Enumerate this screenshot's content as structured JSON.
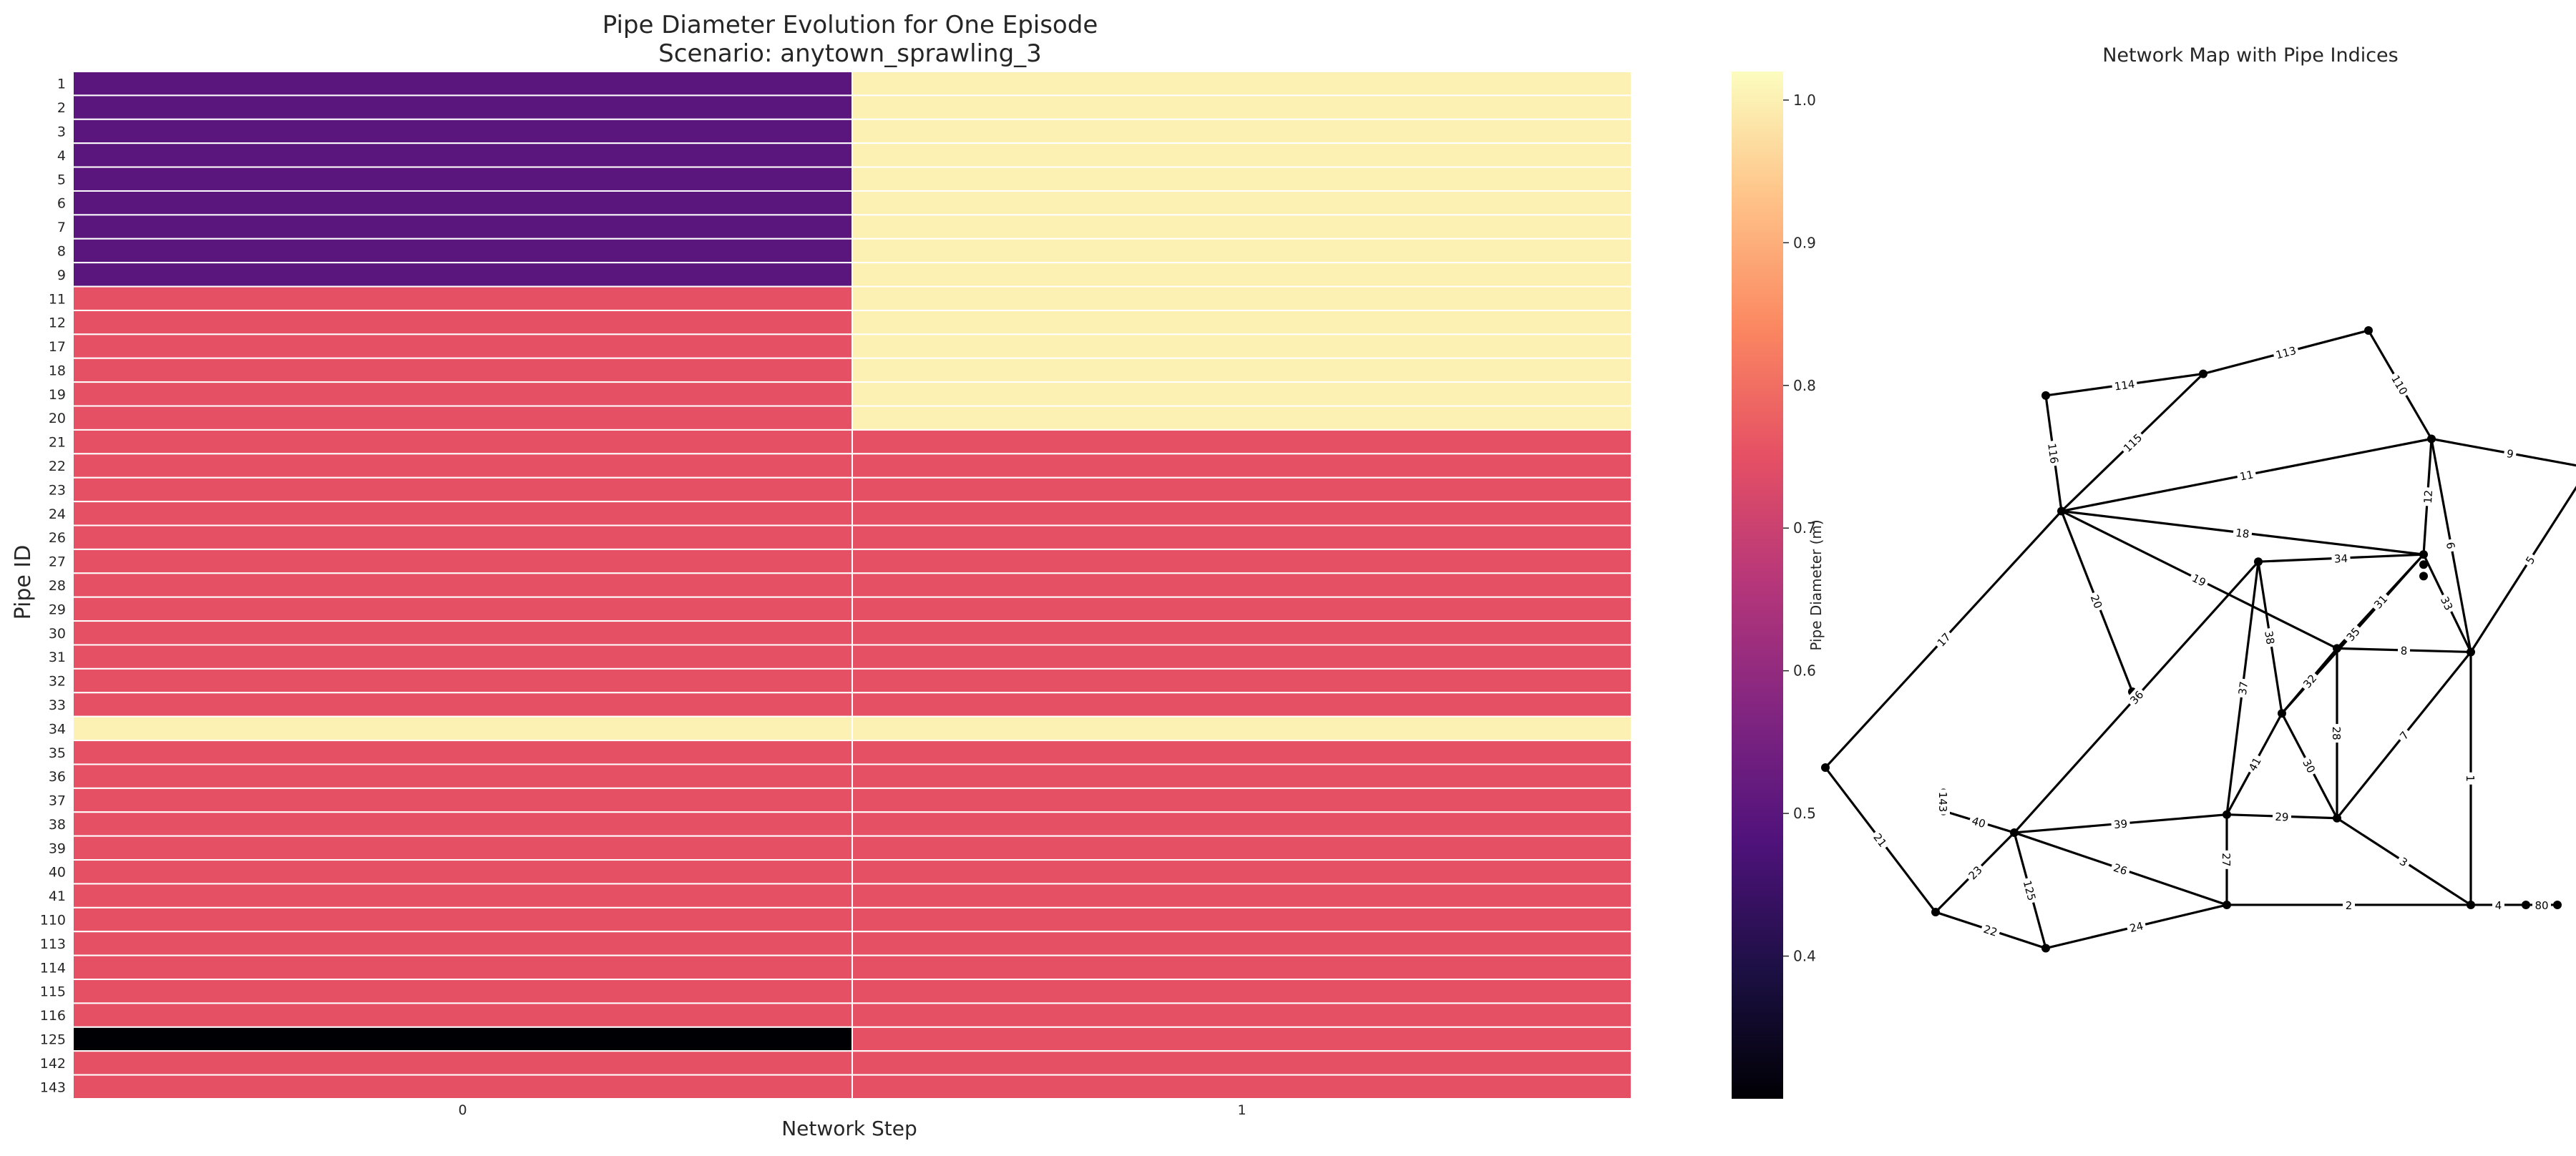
{
  "chart_data": [
    {
      "type": "heatmap",
      "title": "Pipe Diameter Evolution for One Episode",
      "subtitle": "Scenario: anytown_sprawling_3",
      "xlabel": "Network Step",
      "ylabel": "Pipe ID",
      "x": [
        "0",
        "1"
      ],
      "y": [
        "1",
        "2",
        "3",
        "4",
        "5",
        "6",
        "7",
        "8",
        "9",
        "11",
        "12",
        "17",
        "18",
        "19",
        "20",
        "21",
        "22",
        "23",
        "24",
        "26",
        "27",
        "28",
        "29",
        "30",
        "31",
        "32",
        "33",
        "34",
        "35",
        "36",
        "37",
        "38",
        "39",
        "40",
        "41",
        "110",
        "113",
        "114",
        "115",
        "116",
        "125",
        "142",
        "143"
      ],
      "values": [
        [
          0.5,
          1.0
        ],
        [
          0.5,
          1.0
        ],
        [
          0.5,
          1.0
        ],
        [
          0.5,
          1.0
        ],
        [
          0.5,
          1.0
        ],
        [
          0.5,
          1.0
        ],
        [
          0.5,
          1.0
        ],
        [
          0.5,
          1.0
        ],
        [
          0.5,
          1.0
        ],
        [
          0.75,
          1.0
        ],
        [
          0.75,
          1.0
        ],
        [
          0.75,
          1.0
        ],
        [
          0.75,
          1.0
        ],
        [
          0.75,
          1.0
        ],
        [
          0.75,
          1.0
        ],
        [
          0.75,
          0.75
        ],
        [
          0.75,
          0.75
        ],
        [
          0.75,
          0.75
        ],
        [
          0.75,
          0.75
        ],
        [
          0.75,
          0.75
        ],
        [
          0.75,
          0.75
        ],
        [
          0.75,
          0.75
        ],
        [
          0.75,
          0.75
        ],
        [
          0.75,
          0.75
        ],
        [
          0.75,
          0.75
        ],
        [
          0.75,
          0.75
        ],
        [
          0.75,
          0.75
        ],
        [
          1.0,
          1.0
        ],
        [
          0.75,
          0.75
        ],
        [
          0.75,
          0.75
        ],
        [
          0.75,
          0.75
        ],
        [
          0.75,
          0.75
        ],
        [
          0.75,
          0.75
        ],
        [
          0.75,
          0.75
        ],
        [
          0.75,
          0.75
        ],
        [
          0.75,
          0.75
        ],
        [
          0.75,
          0.75
        ],
        [
          0.75,
          0.75
        ],
        [
          0.75,
          0.75
        ],
        [
          0.75,
          0.75
        ],
        [
          0.3,
          0.75
        ],
        [
          0.75,
          0.75
        ],
        [
          0.75,
          0.75
        ]
      ],
      "colorbar": {
        "label": "Pipe Diameter (m)",
        "colormap": "magma",
        "range": [
          0.3,
          1.02
        ],
        "ticks": [
          "0.4",
          "0.5",
          "0.6",
          "0.7",
          "0.8",
          "0.9",
          "1.0"
        ]
      },
      "grid": false
    },
    {
      "type": "network",
      "title": "Network Map with Pipe Indices",
      "nodes": [
        {
          "id": "n1",
          "x": 2.5,
          "y": 10.0
        },
        {
          "id": "n2",
          "x": 1.45,
          "y": 9.4
        },
        {
          "id": "n3",
          "x": 0.45,
          "y": 9.1
        },
        {
          "id": "n4",
          "x": 2.9,
          "y": 8.5
        },
        {
          "id": "n5",
          "x": 3.9,
          "y": 8.1
        },
        {
          "id": "n6",
          "x": 0.55,
          "y": 7.5
        },
        {
          "id": "n7",
          "x": 1.8,
          "y": 6.8
        },
        {
          "id": "n8",
          "x": 2.85,
          "y": 6.9
        },
        {
          "id": "n9",
          "x": 2.85,
          "y": 6.76
        },
        {
          "id": "n10",
          "x": 2.85,
          "y": 6.6
        },
        {
          "id": "n11",
          "x": 2.3,
          "y": 5.6
        },
        {
          "id": "n12",
          "x": 3.15,
          "y": 5.55
        },
        {
          "id": "n13",
          "x": 1.0,
          "y": 5.0
        },
        {
          "id": "n14",
          "x": 1.95,
          "y": 4.7
        },
        {
          "id": "n15",
          "x": -0.95,
          "y": 3.95
        },
        {
          "id": "n16",
          "x": -0.2,
          "y": 3.6
        },
        {
          "id": "n17",
          "x": -0.2,
          "y": 3.35
        },
        {
          "id": "n18",
          "x": 1.6,
          "y": 3.3
        },
        {
          "id": "n19",
          "x": 2.3,
          "y": 3.25
        },
        {
          "id": "n20",
          "x": 0.25,
          "y": 3.05
        },
        {
          "id": "n21",
          "x": -0.25,
          "y": 1.95
        },
        {
          "id": "n22",
          "x": 1.6,
          "y": 2.05
        },
        {
          "id": "n23",
          "x": 3.15,
          "y": 2.05
        },
        {
          "id": "n24",
          "x": 3.5,
          "y": 2.05
        },
        {
          "id": "n25",
          "x": 3.7,
          "y": 2.05
        },
        {
          "id": "n26",
          "x": 0.45,
          "y": 1.45
        }
      ],
      "edges": [
        {
          "source": "n1",
          "target": "n2",
          "label": "113"
        },
        {
          "source": "n1",
          "target": "n4",
          "label": "110"
        },
        {
          "source": "n2",
          "target": "n3",
          "label": "114"
        },
        {
          "source": "n2",
          "target": "n6",
          "label": "115"
        },
        {
          "source": "n3",
          "target": "n6",
          "label": "116"
        },
        {
          "source": "n4",
          "target": "n5",
          "label": "9"
        },
        {
          "source": "n4",
          "target": "n6",
          "label": "11"
        },
        {
          "source": "n4",
          "target": "n8",
          "label": "12"
        },
        {
          "source": "n4",
          "target": "n12",
          "label": "6"
        },
        {
          "source": "n5",
          "target": "n12",
          "label": "5"
        },
        {
          "source": "n6",
          "target": "n8",
          "label": "18"
        },
        {
          "source": "n6",
          "target": "n11",
          "label": "19"
        },
        {
          "source": "n6",
          "target": "n13",
          "label": "20"
        },
        {
          "source": "n6",
          "target": "n15",
          "label": "17"
        },
        {
          "source": "n8",
          "target": "n11",
          "label": "31"
        },
        {
          "source": "n8",
          "target": "n12",
          "label": "33"
        },
        {
          "source": "n8",
          "target": "n14",
          "label": "35"
        },
        {
          "source": "n8",
          "target": "n7",
          "label": "34"
        },
        {
          "source": "n11",
          "target": "n12",
          "label": "8"
        },
        {
          "source": "n11",
          "target": "n14",
          "label": "32"
        },
        {
          "source": "n11",
          "target": "n19",
          "label": "28"
        },
        {
          "source": "n12",
          "target": "n19",
          "label": "7"
        },
        {
          "source": "n12",
          "target": "n23",
          "label": "1"
        },
        {
          "source": "n7",
          "target": "n14",
          "label": "38"
        },
        {
          "source": "n7",
          "target": "n18",
          "label": "37"
        },
        {
          "source": "n7",
          "target": "n20",
          "label": "36"
        },
        {
          "source": "n14",
          "target": "n18",
          "label": "41"
        },
        {
          "source": "n14",
          "target": "n19",
          "label": "30"
        },
        {
          "source": "n18",
          "target": "n19",
          "label": "29"
        },
        {
          "source": "n18",
          "target": "n20",
          "label": "39"
        },
        {
          "source": "n18",
          "target": "n22",
          "label": "27"
        },
        {
          "source": "n19",
          "target": "n23",
          "label": "3"
        },
        {
          "source": "n20",
          "target": "n17",
          "label": "40"
        },
        {
          "source": "n16",
          "target": "n17",
          "label": "143"
        },
        {
          "source": "n20",
          "target": "n22",
          "label": "26"
        },
        {
          "source": "n20",
          "target": "n21",
          "label": "23"
        },
        {
          "source": "n20",
          "target": "n26",
          "label": "125"
        },
        {
          "source": "n15",
          "target": "n21",
          "label": "21"
        },
        {
          "source": "n21",
          "target": "n26",
          "label": "22"
        },
        {
          "source": "n26",
          "target": "n22",
          "label": "24"
        },
        {
          "source": "n22",
          "target": "n23",
          "label": "2"
        },
        {
          "source": "n23",
          "target": "n24",
          "label": "4"
        },
        {
          "source": "n24",
          "target": "n25",
          "label": "80"
        }
      ]
    }
  ]
}
